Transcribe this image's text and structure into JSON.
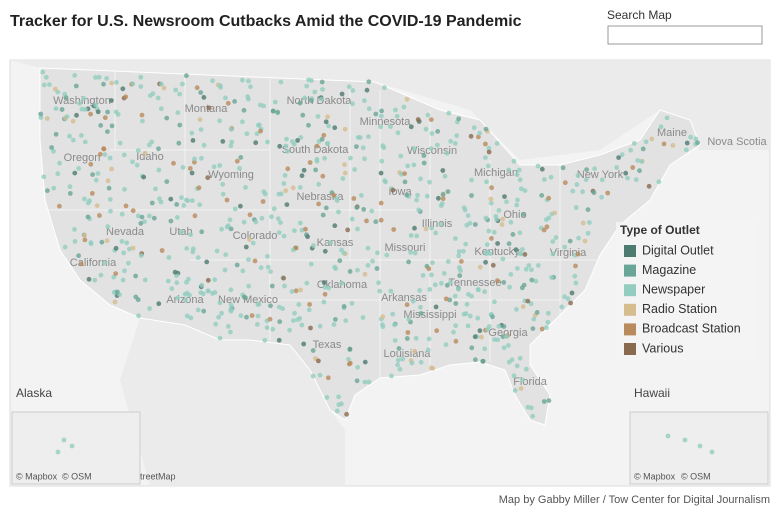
{
  "header": {
    "title": "Tracker for U.S. Newsroom Cutbacks Amid the COVID-19 Pandemic",
    "search_label": "Search Map"
  },
  "map": {
    "state_labels": [
      "Washington",
      "Montana",
      "North Dakota",
      "Minnesota",
      "Oregon",
      "Idaho",
      "South Dakota",
      "Wisconsin",
      "Michigan",
      "Maine",
      "Nova Scotia",
      "Wyoming",
      "Nebraska",
      "New York",
      "Iowa",
      "Nevada",
      "Utah",
      "Colorado",
      "Kansas",
      "Illinois",
      "Missouri",
      "Ohio",
      "Kentucky",
      "Virginia",
      "California",
      "Oklahoma",
      "Tennessee",
      "Arizona",
      "New Mexico",
      "Arkansas",
      "Mississippi",
      "Georgia",
      "Texas",
      "Louisiana",
      "Florida"
    ],
    "inset_labels": [
      "Alaska",
      "Hawaii"
    ],
    "attributions": [
      "© Mapbox",
      "© OSM",
      "treetMap",
      "© Mapbox",
      "© OSM"
    ]
  },
  "legend": {
    "title": "Type of Outlet",
    "items": [
      {
        "label": "Digital Outlet",
        "color": "#4d7b70"
      },
      {
        "label": "Magazine",
        "color": "#6aa697"
      },
      {
        "label": "Newspaper",
        "color": "#92cdbf"
      },
      {
        "label": "Radio Station",
        "color": "#d6bd8e"
      },
      {
        "label": "Broadcast Station",
        "color": "#b98b5c"
      },
      {
        "label": "Various",
        "color": "#8a6a4f"
      }
    ]
  },
  "footer": {
    "credit": "Map by Gabby Miller / Tow Center for Digital Journalism"
  }
}
